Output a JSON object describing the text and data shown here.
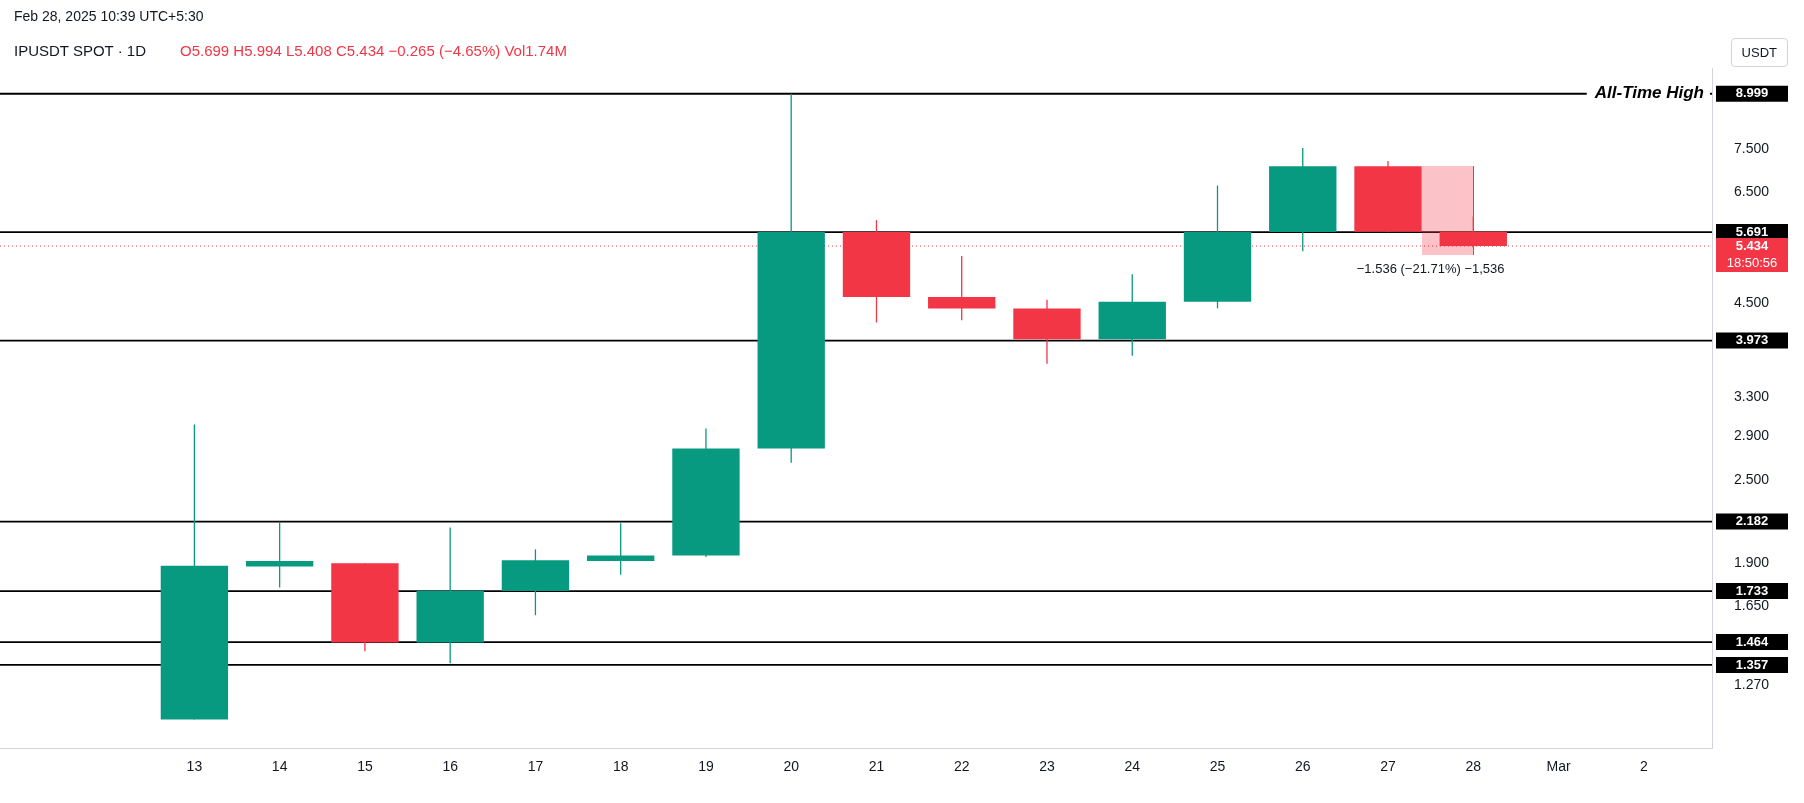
{
  "chart_data": {
    "type": "candlestick",
    "title": "IPUSDT SPOT · 1D",
    "subtitle": "O5.699 H5.994 L5.408 C5.434 −0.265 (−4.65%) Vol1.74M",
    "ylabel": "USDT",
    "categories": [
      "13",
      "14",
      "15",
      "16",
      "17",
      "18",
      "19",
      "20",
      "21",
      "22",
      "23",
      "24",
      "25",
      "26",
      "27",
      "28",
      "Mar",
      "2"
    ],
    "ohlc": [
      [
        1.133,
        3.01,
        1.133,
        1.885
      ],
      [
        1.88,
        2.18,
        1.754,
        1.914
      ],
      [
        1.9,
        1.9,
        1.42,
        1.462
      ],
      [
        1.462,
        2.14,
        1.365,
        1.735
      ],
      [
        1.733,
        1.99,
        1.6,
        1.92
      ],
      [
        1.914,
        2.17,
        1.83,
        1.95
      ],
      [
        1.95,
        2.97,
        1.94,
        2.78
      ],
      [
        2.78,
        8.999,
        2.65,
        5.691
      ],
      [
        5.691,
        5.92,
        4.22,
        4.59
      ],
      [
        4.59,
        5.26,
        4.25,
        4.42
      ],
      [
        4.42,
        4.55,
        3.68,
        3.99
      ],
      [
        3.99,
        4.95,
        3.78,
        4.52
      ],
      [
        4.52,
        6.64,
        4.42,
        5.691
      ],
      [
        5.691,
        7.52,
        5.34,
        7.08
      ],
      [
        7.08,
        7.2,
        5.69,
        5.699
      ],
      [
        5.699,
        5.994,
        5.408,
        5.434
      ],
      null,
      null
    ],
    "colors": [
      "#089981",
      "#089981",
      "#f23645",
      "#089981",
      "#089981",
      "#089981",
      "#089981",
      "#089981",
      "#f23645",
      "#f23645",
      "#f23645",
      "#089981",
      "#089981",
      "#089981",
      "#f23645",
      "#f23645",
      null,
      null
    ],
    "log": true,
    "ylim": [
      1.03,
      9.8
    ],
    "yticks": [
      {
        "value": 1.27,
        "label": "1.270"
      },
      {
        "value": 1.65,
        "label": "1.650"
      },
      {
        "value": 1.9,
        "label": "1.900"
      },
      {
        "value": 2.5,
        "label": "2.500"
      },
      {
        "value": 2.9,
        "label": "2.900"
      },
      {
        "value": 3.3,
        "label": "3.300"
      },
      {
        "value": 4.5,
        "label": "4.500"
      },
      {
        "value": 6.5,
        "label": "6.500"
      },
      {
        "value": 7.5,
        "label": "7.500"
      }
    ],
    "ref_lines": [
      {
        "axis": "y",
        "value": 8.999,
        "label": "8.999",
        "color": "#000000"
      },
      {
        "axis": "y",
        "value": 5.691,
        "label": "5.691",
        "color": "#000000"
      },
      {
        "axis": "y",
        "value": 3.973,
        "label": "3.973",
        "color": "#000000"
      },
      {
        "axis": "y",
        "value": 2.182,
        "label": "2.182",
        "color": "#000000"
      },
      {
        "axis": "y",
        "value": 1.733,
        "label": "1.733",
        "color": "#000000"
      },
      {
        "axis": "y",
        "value": 1.464,
        "label": "1.464",
        "color": "#000000"
      },
      {
        "axis": "y",
        "value": 1.357,
        "label": "1.357",
        "color": "#000000"
      },
      {
        "axis": "y",
        "value": 5.434,
        "label": "5.434",
        "color": "#f23645",
        "line_style": "dotted"
      }
    ],
    "annotations": [
      "Feb 28, 2025 10:39 UTC+5:30",
      "18:50:56",
      "−1.536 (−21.71%) −1,536",
      {
        "text": "All-Time High",
        "y": 8.999
      }
    ]
  }
}
